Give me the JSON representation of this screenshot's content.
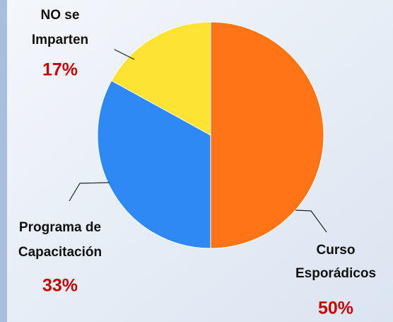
{
  "chart_data": {
    "type": "pie",
    "categories": [
      [
        "Curso",
        "Esporádicos"
      ],
      [
        "Programa de",
        "Capacitación"
      ],
      [
        "NO se",
        "Imparten"
      ]
    ],
    "values": [
      50,
      33,
      17
    ],
    "value_labels": [
      "50%",
      "33%",
      "17%"
    ],
    "colors": [
      "#ff7416",
      "#2f89f5",
      "#fde333"
    ]
  }
}
